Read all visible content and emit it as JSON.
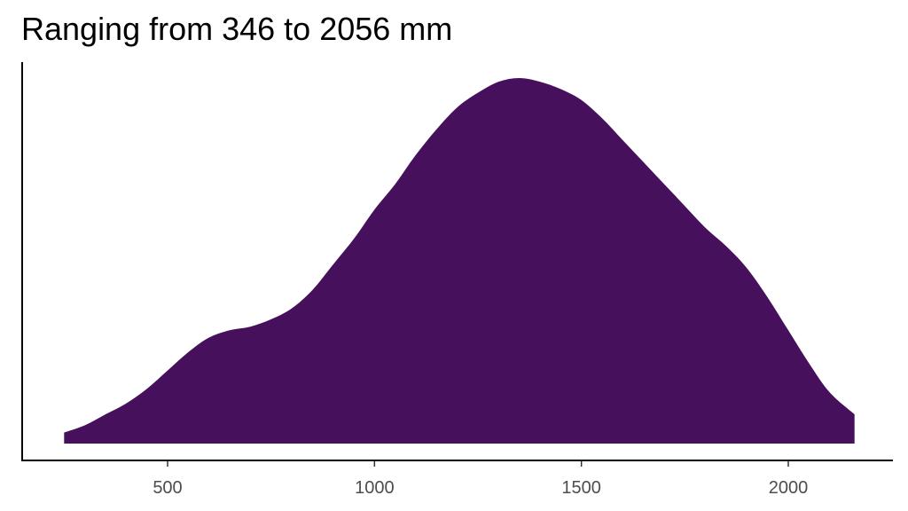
{
  "chart_data": {
    "type": "area",
    "title": "Ranging from 346 to 2056 mm",
    "xlabel": "",
    "ylabel": "",
    "xlim": [
      160,
      2250
    ],
    "ylim": [
      0,
      1.0
    ],
    "x_ticks": [
      500,
      1000,
      1500,
      2000
    ],
    "x_tick_labels": [
      "500",
      "1000",
      "1500",
      "2000"
    ],
    "y_ticks_shown": false,
    "grid": false,
    "legend": "none",
    "fill_color": "#46105c",
    "series": [
      {
        "x": [
          250,
          300,
          350,
          400,
          450,
          500,
          550,
          600,
          650,
          700,
          750,
          800,
          850,
          900,
          950,
          1000,
          1050,
          1100,
          1150,
          1200,
          1250,
          1300,
          1350,
          1400,
          1450,
          1500,
          1550,
          1600,
          1650,
          1700,
          1750,
          1800,
          1850,
          1900,
          1950,
          2000,
          2050,
          2100,
          2160
        ],
        "values": [
          0.03,
          0.05,
          0.08,
          0.11,
          0.15,
          0.2,
          0.25,
          0.29,
          0.31,
          0.32,
          0.34,
          0.37,
          0.42,
          0.49,
          0.56,
          0.64,
          0.71,
          0.79,
          0.86,
          0.92,
          0.96,
          0.99,
          1.0,
          0.99,
          0.97,
          0.94,
          0.89,
          0.83,
          0.77,
          0.71,
          0.65,
          0.59,
          0.54,
          0.48,
          0.4,
          0.31,
          0.22,
          0.14,
          0.08
        ]
      }
    ]
  }
}
